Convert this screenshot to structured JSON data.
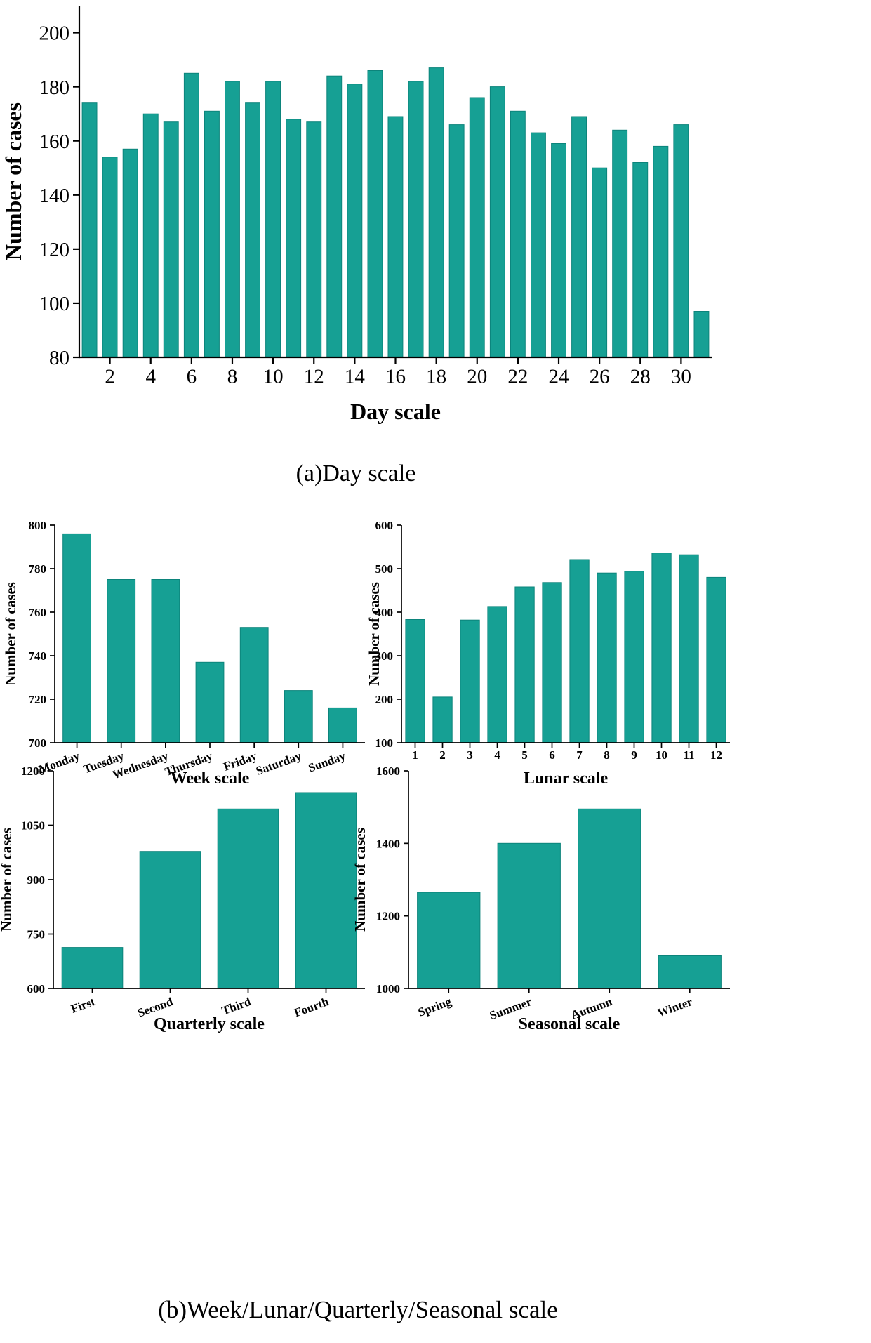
{
  "captions": {
    "a": "(a)Day scale",
    "b": "(b)Week/Lunar/Quarterly/Seasonal scale"
  },
  "colors": {
    "bar_fill": "#16a094",
    "bar_stroke": "#0c847b",
    "axis": "#000000",
    "text": "#000000",
    "background": "#ffffff"
  },
  "chart_data": [
    {
      "id": "day",
      "type": "bar",
      "title": "(a)Day scale",
      "xlabel": "Day scale",
      "ylabel": "Number of cases",
      "categories": [
        1,
        2,
        3,
        4,
        5,
        6,
        7,
        8,
        9,
        10,
        11,
        12,
        13,
        14,
        15,
        16,
        17,
        18,
        19,
        20,
        21,
        22,
        23,
        24,
        25,
        26,
        27,
        28,
        29,
        30,
        31
      ],
      "values": [
        174,
        154,
        157,
        170,
        167,
        185,
        171,
        182,
        174,
        182,
        168,
        167,
        184,
        181,
        186,
        169,
        182,
        187,
        166,
        176,
        180,
        171,
        163,
        159,
        169,
        150,
        164,
        152,
        158,
        166,
        97
      ],
      "ylim": [
        80,
        210
      ],
      "yticks": [
        80,
        100,
        120,
        140,
        160,
        180,
        200
      ],
      "xtick_label_every": 2,
      "grid": false,
      "legend": "none"
    },
    {
      "id": "week",
      "type": "bar",
      "title": "",
      "xlabel": "Week scale",
      "ylabel": "Number of cases",
      "categories": [
        "Monday",
        "Tuesday",
        "Wednesday",
        "Thursday",
        "Friday",
        "Saturday",
        "Sunday"
      ],
      "values": [
        796,
        775,
        775,
        737,
        753,
        724,
        716
      ],
      "ylim": [
        700,
        800
      ],
      "yticks": [
        700,
        720,
        740,
        760,
        780,
        800
      ],
      "xtick_label_every": 1,
      "grid": false,
      "legend": "none"
    },
    {
      "id": "lunar",
      "type": "bar",
      "title": "",
      "xlabel": "Lunar scale",
      "ylabel": "Number of cases",
      "categories": [
        1,
        2,
        3,
        4,
        5,
        6,
        7,
        8,
        9,
        10,
        11,
        12
      ],
      "values": [
        383,
        205,
        382,
        413,
        458,
        468,
        521,
        490,
        494,
        536,
        532,
        480
      ],
      "ylim": [
        100,
        600
      ],
      "yticks": [
        100,
        200,
        300,
        400,
        500,
        600
      ],
      "xtick_label_every": 1,
      "grid": false,
      "legend": "none"
    },
    {
      "id": "quarterly",
      "type": "bar",
      "title": "",
      "xlabel": "Quarterly scale",
      "ylabel": "Number of cases",
      "categories": [
        "First",
        "Second",
        "Third",
        "Fourth"
      ],
      "values": [
        713,
        978,
        1095,
        1140
      ],
      "ylim": [
        600,
        1200
      ],
      "yticks": [
        600,
        750,
        900,
        1050,
        1200
      ],
      "xtick_label_every": 1,
      "grid": false,
      "legend": "none"
    },
    {
      "id": "seasonal",
      "type": "bar",
      "title": "",
      "xlabel": "Seasonal scale",
      "ylabel": "Number of cases",
      "categories": [
        "Spring",
        "Summer",
        "Autumn",
        "Winter"
      ],
      "values": [
        1265,
        1400,
        1495,
        1090
      ],
      "ylim": [
        1000,
        1600
      ],
      "yticks": [
        1000,
        1200,
        1400,
        1600
      ],
      "xtick_label_every": 1,
      "grid": false,
      "legend": "none"
    }
  ]
}
